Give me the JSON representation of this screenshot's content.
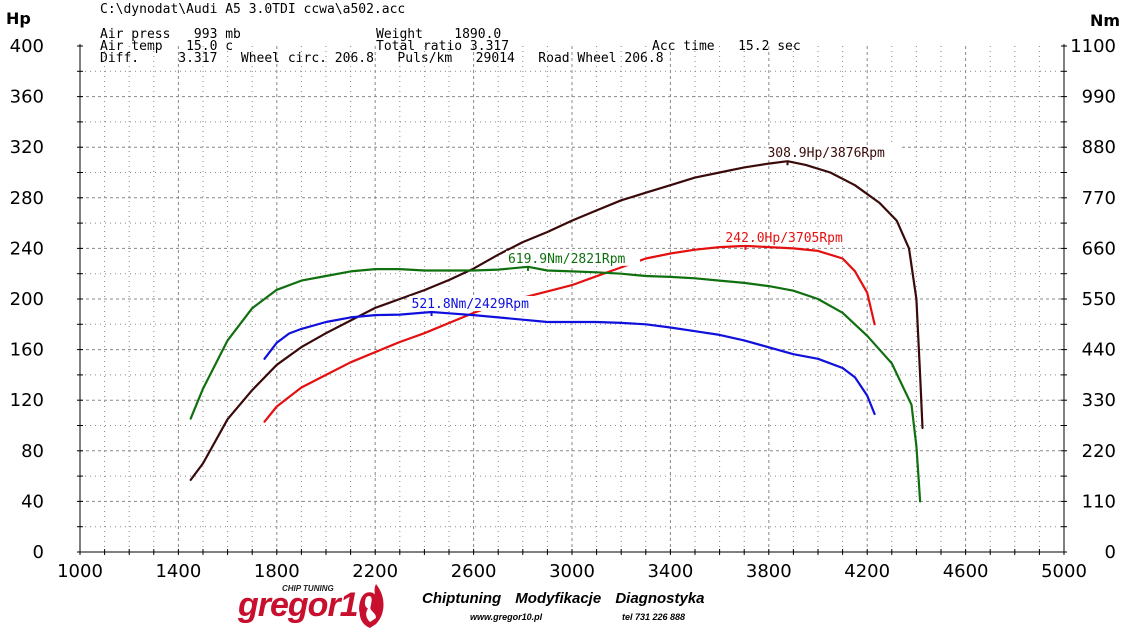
{
  "header": {
    "file": "C:\\dynodat\\Audi A5 3.0TDI ccwa\\a502.acc",
    "line1_left": "Air press   993 mb",
    "line1_mid": "Weight    1890.0",
    "line2_left": "Air temp   15.0 c",
    "line2_mid": "Total ratio 3.317",
    "line2_right": "Acc time   15.2 sec",
    "line3": "Diff.     3.317   Wheel circ. 206.8   Puls/km   29014   Road Wheel 206.8"
  },
  "footer": {
    "logo": "gregor10",
    "logo_sub": "CHIP TUNING",
    "tagline": "Chiptuning  Modyfikacje  Diagnostyka",
    "url": "www.gregor10.pl",
    "tel": "tel 731 226 888"
  },
  "chart_data": {
    "type": "line",
    "left_axis_label": "Hp",
    "right_axis_label": "Nm",
    "xlim": [
      1000,
      5000
    ],
    "ylim_left": [
      0,
      400
    ],
    "ylim_right": [
      0,
      1100
    ],
    "x_ticks": [
      1000,
      1400,
      1800,
      2200,
      2600,
      3000,
      3400,
      3800,
      4200,
      4600,
      5000
    ],
    "y_ticks_left": [
      0,
      40,
      80,
      120,
      160,
      200,
      240,
      280,
      320,
      360,
      400
    ],
    "y_ticks_right": [
      0,
      110,
      220,
      330,
      440,
      550,
      660,
      770,
      880,
      990,
      1100
    ],
    "grid": true,
    "series": [
      {
        "color": "#3a0a0a",
        "axis": "left",
        "x": [
          1450,
          1500,
          1600,
          1700,
          1800,
          1900,
          2000,
          2100,
          2200,
          2300,
          2400,
          2500,
          2600,
          2700,
          2800,
          2900,
          3000,
          3100,
          3200,
          3300,
          3400,
          3500,
          3600,
          3700,
          3800,
          3876,
          3950,
          4050,
          4150,
          4250,
          4320,
          4370,
          4400,
          4415,
          4425
        ],
        "y": [
          57,
          70,
          105,
          128,
          148,
          162,
          173,
          183,
          193,
          200,
          207,
          215,
          224,
          235,
          245,
          253,
          262,
          270,
          278,
          284,
          290,
          296,
          300,
          304,
          307,
          308.9,
          306,
          300,
          290,
          276,
          262,
          240,
          200,
          140,
          98
        ]
      },
      {
        "color": "#e41010",
        "axis": "left",
        "x": [
          1750,
          1800,
          1900,
          2000,
          2100,
          2200,
          2300,
          2400,
          2500,
          2600,
          2700,
          2800,
          2900,
          3000,
          3100,
          3200,
          3300,
          3400,
          3500,
          3600,
          3705,
          3800,
          3900,
          4000,
          4100,
          4150,
          4200,
          4230
        ],
        "y": [
          103,
          115,
          130,
          140,
          150,
          158,
          166,
          173,
          181,
          189,
          196,
          201,
          206,
          211,
          218,
          225,
          232,
          236,
          239,
          241,
          242,
          241,
          240,
          238,
          232,
          222,
          205,
          180
        ]
      },
      {
        "color": "#107010",
        "axis": "right",
        "x": [
          1450,
          1500,
          1600,
          1700,
          1800,
          1900,
          2000,
          2100,
          2200,
          2300,
          2400,
          2500,
          2600,
          2700,
          2821,
          2900,
          3000,
          3100,
          3200,
          3300,
          3400,
          3500,
          3600,
          3700,
          3800,
          3900,
          4000,
          4100,
          4200,
          4300,
          4380,
          4400,
          4410,
          4415
        ],
        "y": [
          290,
          355,
          460,
          530,
          570,
          590,
          600,
          610,
          615,
          615,
          612,
          612,
          612,
          614,
          619.9,
          612,
          610,
          608,
          605,
          600,
          598,
          595,
          590,
          585,
          578,
          568,
          550,
          520,
          470,
          410,
          320,
          230,
          150,
          110
        ]
      },
      {
        "color": "#1010dd",
        "axis": "right",
        "x": [
          1750,
          1800,
          1850,
          1900,
          2000,
          2100,
          2200,
          2300,
          2429,
          2500,
          2600,
          2700,
          2800,
          2900,
          3000,
          3100,
          3200,
          3300,
          3400,
          3500,
          3600,
          3700,
          3800,
          3900,
          4000,
          4100,
          4150,
          4200,
          4230
        ],
        "y": [
          420,
          455,
          475,
          485,
          500,
          510,
          515,
          516,
          521.8,
          519,
          515,
          510,
          505,
          500,
          500,
          500,
          498,
          495,
          488,
          480,
          472,
          460,
          445,
          430,
          420,
          400,
          380,
          340,
          300
        ]
      }
    ],
    "annotations": [
      {
        "text": "308.9Hp/3876Rpm",
        "color": "#3a0a0a",
        "x": 3876,
        "y": 308.9,
        "axis": "left"
      },
      {
        "text": "242.0Hp/3705Rpm",
        "color": "#e41010",
        "x": 3705,
        "y": 242,
        "axis": "left"
      },
      {
        "text": "619.9Nm/2821Rpm",
        "color": "#107010",
        "x": 2821,
        "y": 619.9,
        "axis": "right"
      },
      {
        "text": "521.8Nm/2429Rpm",
        "color": "#1010dd",
        "x": 2429,
        "y": 521.8,
        "axis": "right"
      }
    ]
  }
}
